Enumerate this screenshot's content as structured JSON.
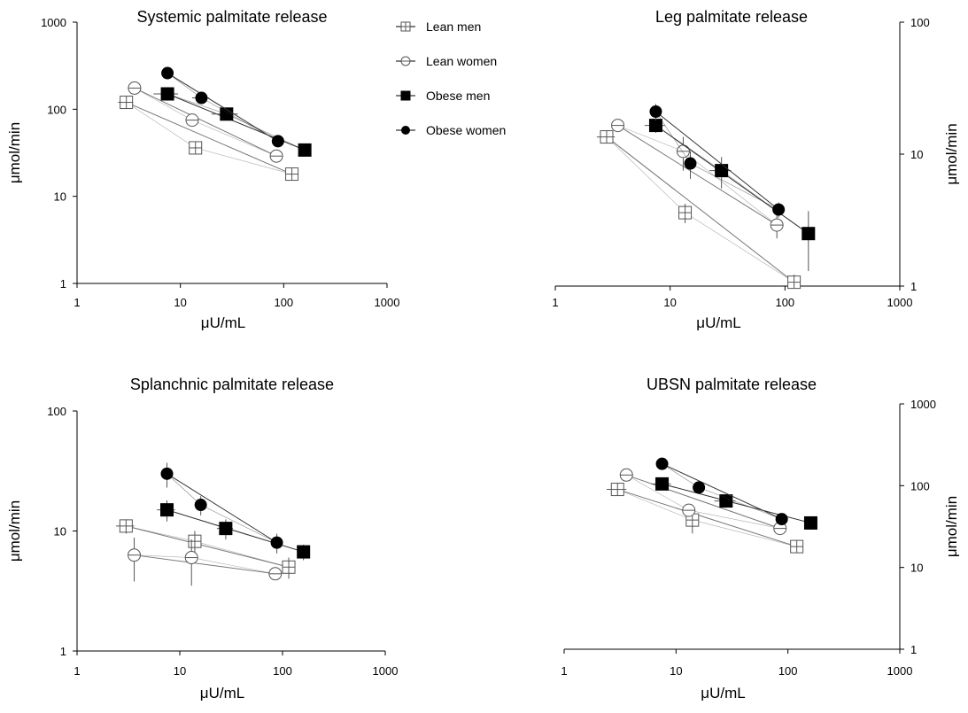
{
  "legend": {
    "entries": [
      {
        "name": "Lean men",
        "marker": "square-cross",
        "filled": false
      },
      {
        "name": "Lean women",
        "marker": "circle-line",
        "filled": false
      },
      {
        "name": "Obese men",
        "marker": "square",
        "filled": true
      },
      {
        "name": "Obese women",
        "marker": "circle",
        "filled": true
      }
    ]
  },
  "colors": {
    "lean_markers": "#555555",
    "obese_markers": "#000000",
    "lean_fit": "#777777",
    "obese_fit": "#333333"
  },
  "chart_data": [
    {
      "id": "systemic",
      "type": "scatter",
      "title": "Systemic palmitate release",
      "xlabel": "μU/mL",
      "ylabel": "μmol/min",
      "x_scale": "log",
      "y_scale": "log",
      "xlim": [
        1,
        1000
      ],
      "ylim": [
        1,
        1000
      ],
      "x_ticks": [
        "1",
        "10",
        "100",
        "1000"
      ],
      "y_ticks": [
        "1",
        "10",
        "100",
        "1000"
      ],
      "y_axis_side": "left",
      "series": [
        {
          "name": "Lean men",
          "points": [
            {
              "x": 3,
              "y": 120,
              "xerr": 0.5
            },
            {
              "x": 14,
              "y": 36
            },
            {
              "x": 120,
              "y": 18
            }
          ]
        },
        {
          "name": "Lean women",
          "points": [
            {
              "x": 3.6,
              "y": 175
            },
            {
              "x": 13,
              "y": 75
            },
            {
              "x": 85,
              "y": 29
            }
          ]
        },
        {
          "name": "Obese men",
          "points": [
            {
              "x": 7.5,
              "y": 150,
              "xerr": 2
            },
            {
              "x": 28,
              "y": 88,
              "xerr": 8
            },
            {
              "x": 160,
              "y": 34
            }
          ]
        },
        {
          "name": "Obese women",
          "points": [
            {
              "x": 7.5,
              "y": 260
            },
            {
              "x": 16,
              "y": 135,
              "xerr": 3
            },
            {
              "x": 88,
              "y": 43
            }
          ]
        }
      ]
    },
    {
      "id": "leg",
      "type": "scatter",
      "title": "Leg palmitate release",
      "xlabel": "μU/mL",
      "ylabel": "μmol/min",
      "x_scale": "log",
      "y_scale": "log",
      "xlim": [
        1,
        1000
      ],
      "ylim": [
        1,
        100
      ],
      "x_ticks": [
        "1",
        "10",
        "100",
        "1000"
      ],
      "y_ticks": [
        "1",
        "10",
        "100"
      ],
      "y_axis_side": "right",
      "series": [
        {
          "name": "Lean men",
          "points": [
            {
              "x": 2.8,
              "y": 13.5,
              "xerr": 0.5
            },
            {
              "x": 13.5,
              "y": 3.6,
              "yerr": 0.6
            },
            {
              "x": 120,
              "y": 1.07,
              "yerr": 0.15
            }
          ]
        },
        {
          "name": "Lean women",
          "points": [
            {
              "x": 3.5,
              "y": 16.5,
              "yerr": 1.5
            },
            {
              "x": 13,
              "y": 10.5,
              "yerr": 3
            },
            {
              "x": 85,
              "y": 2.9,
              "yerr": 0.6
            }
          ]
        },
        {
          "name": "Obese men",
          "points": [
            {
              "x": 7.5,
              "y": 16.5,
              "xerr": 1.5,
              "yerr": 2
            },
            {
              "x": 28,
              "y": 7.5,
              "xerr": 6,
              "yerr": 2
            },
            {
              "x": 160,
              "y": 2.5,
              "yerr": 1.2
            }
          ]
        },
        {
          "name": "Obese women",
          "points": [
            {
              "x": 7.5,
              "y": 21,
              "yerr": 3
            },
            {
              "x": 15,
              "y": 8.5,
              "yerr": 2
            },
            {
              "x": 88,
              "y": 3.8,
              "yerr": 0.5
            }
          ]
        }
      ]
    },
    {
      "id": "splanchnic",
      "type": "scatter",
      "title": "Splanchnic palmitate release",
      "xlabel": "μU/mL",
      "ylabel": "μmol/min",
      "x_scale": "log",
      "y_scale": "log",
      "xlim": [
        1,
        1000
      ],
      "ylim": [
        1,
        100
      ],
      "x_ticks": [
        "1",
        "10",
        "100",
        "1000"
      ],
      "y_ticks": [
        "1",
        "10",
        "100"
      ],
      "y_axis_side": "left",
      "series": [
        {
          "name": "Lean men",
          "points": [
            {
              "x": 3,
              "y": 11,
              "xerr": 0.6,
              "yerr": 1.5
            },
            {
              "x": 14,
              "y": 8.2,
              "yerr": 1.8
            },
            {
              "x": 115,
              "y": 5,
              "yerr": 1
            }
          ]
        },
        {
          "name": "Lean women",
          "points": [
            {
              "x": 3.6,
              "y": 6.3,
              "yerr": 2.5
            },
            {
              "x": 13,
              "y": 6,
              "yerr": 2.5
            },
            {
              "x": 85,
              "y": 4.4,
              "yerr": 0.5
            }
          ]
        },
        {
          "name": "Obese men",
          "points": [
            {
              "x": 7.5,
              "y": 15,
              "xerr": 1.5,
              "yerr": 3
            },
            {
              "x": 28,
              "y": 10.5,
              "xerr": 5,
              "yerr": 2
            },
            {
              "x": 160,
              "y": 6.7,
              "yerr": 1
            }
          ]
        },
        {
          "name": "Obese women",
          "points": [
            {
              "x": 7.5,
              "y": 30,
              "yerr": 7
            },
            {
              "x": 16,
              "y": 16.5,
              "yerr": 3
            },
            {
              "x": 88,
              "y": 8,
              "yerr": 1.5
            }
          ]
        }
      ]
    },
    {
      "id": "ubsn",
      "type": "scatter",
      "title": "UBSN palmitate release",
      "xlabel": "μU/mL",
      "ylabel": "μmol/min",
      "x_scale": "log",
      "y_scale": "log",
      "xlim": [
        1,
        1000
      ],
      "ylim": [
        1,
        1000
      ],
      "x_ticks": [
        "1",
        "10",
        "100",
        "1000"
      ],
      "y_ticks": [
        "1",
        "10",
        "100",
        "1000"
      ],
      "y_axis_side": "right",
      "series": [
        {
          "name": "Lean men",
          "points": [
            {
              "x": 3,
              "y": 90,
              "xerr": 0.6
            },
            {
              "x": 14,
              "y": 38,
              "yerr": 12
            },
            {
              "x": 120,
              "y": 18
            }
          ]
        },
        {
          "name": "Lean women",
          "points": [
            {
              "x": 3.6,
              "y": 135
            },
            {
              "x": 13,
              "y": 50
            },
            {
              "x": 85,
              "y": 30
            }
          ]
        },
        {
          "name": "Obese men",
          "points": [
            {
              "x": 7.5,
              "y": 105,
              "xerr": 1.5
            },
            {
              "x": 28,
              "y": 65,
              "xerr": 6
            },
            {
              "x": 160,
              "y": 35
            }
          ]
        },
        {
          "name": "Obese women",
          "points": [
            {
              "x": 7.5,
              "y": 185
            },
            {
              "x": 16,
              "y": 95
            },
            {
              "x": 88,
              "y": 39
            }
          ]
        }
      ]
    }
  ]
}
